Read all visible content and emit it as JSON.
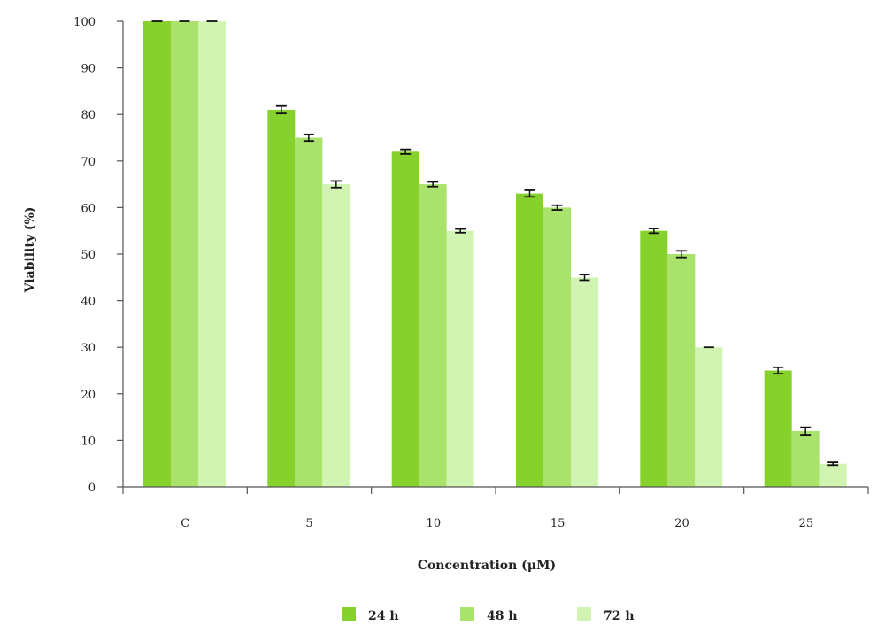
{
  "chart_data": {
    "type": "bar",
    "categories": [
      "C",
      "5",
      "10",
      "15",
      "20",
      "25"
    ],
    "series": [
      {
        "name": "24 h",
        "color": "#86d12b",
        "values": [
          100,
          81,
          72,
          63,
          55,
          25
        ],
        "errors": [
          0,
          0.8,
          0.5,
          0.7,
          0.5,
          0.7
        ]
      },
      {
        "name": "48 h",
        "color": "#a9e36c",
        "values": [
          100,
          75,
          65,
          60,
          50,
          12
        ],
        "errors": [
          0,
          0.7,
          0.5,
          0.5,
          0.7,
          0.8
        ]
      },
      {
        "name": "72 h",
        "color": "#d2f4b3",
        "values": [
          100,
          65,
          55,
          45,
          30,
          5
        ],
        "errors": [
          0,
          0.7,
          0.4,
          0.6,
          0,
          0.3
        ]
      }
    ],
    "xlabel": "Concentration (μM)",
    "ylabel": "Viability (%)",
    "ylim": [
      0,
      100
    ],
    "yticks": [
      "0",
      "10",
      "20",
      "30",
      "40",
      "50",
      "60",
      "70",
      "80",
      "90",
      "100"
    ],
    "grid": false,
    "legend_position": "bottom"
  }
}
